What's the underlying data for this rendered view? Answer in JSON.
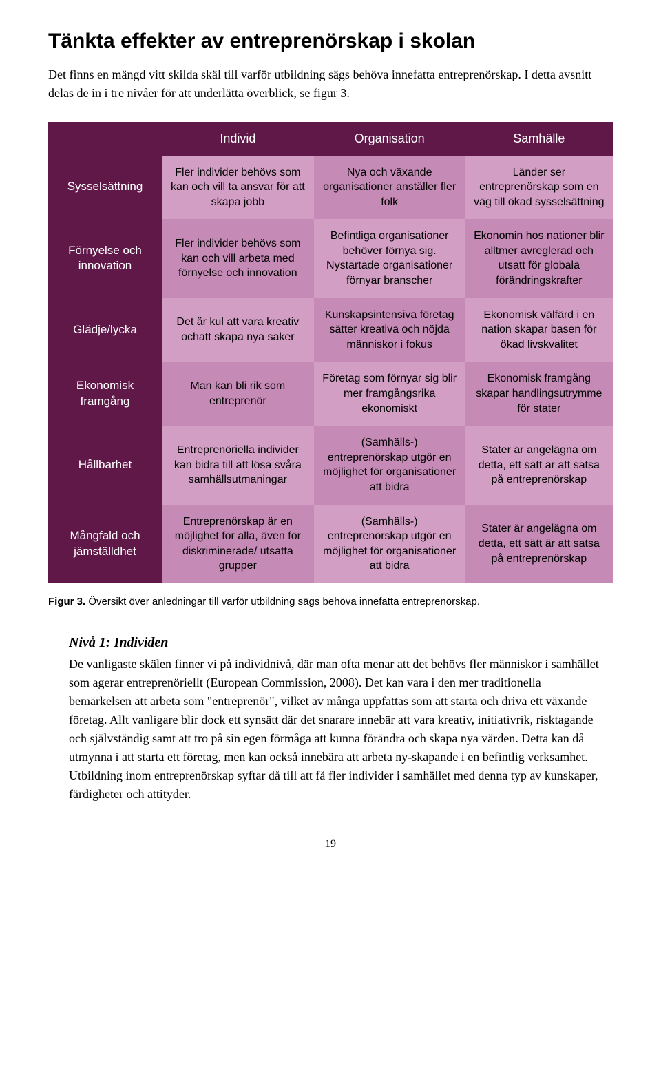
{
  "heading": "Tänkta effekter av entreprenörskap i skolan",
  "intro": "Det finns en mängd vitt skilda skäl till varför utbildning sägs behöva innefatta entreprenörskap. I detta avsnitt delas de in i tre nivåer för att underlätta överblick, se figur 3.",
  "table": {
    "header_bg": "#5f1848",
    "header_color": "#ffffff",
    "shade_a": "#d29ec4",
    "shade_b": "#c58ab6",
    "columns": [
      "Individ",
      "Organisation",
      "Samhälle"
    ],
    "rows": [
      {
        "label": "Sysselsättning",
        "cells": [
          "Fler individer behövs som kan och vill ta ansvar för att skapa jobb",
          "Nya och växande organisationer anställer fler folk",
          "Länder ser entreprenörskap som en väg till ökad sysselsättning"
        ]
      },
      {
        "label": "Förnyelse och innovation",
        "cells": [
          "Fler individer behövs som kan och vill arbeta med förnyelse och innovation",
          "Befintliga organisationer behöver förnya sig. Nystartade organisationer förnyar branscher",
          "Ekonomin hos nationer blir alltmer avreglerad och utsatt för globala förändringskrafter"
        ]
      },
      {
        "label": "Glädje/lycka",
        "cells": [
          "Det är kul att vara kreativ ochatt skapa nya saker",
          "Kunskapsintensiva företag sätter kreativa och nöjda människor i fokus",
          "Ekonomisk välfärd i en nation skapar basen för ökad livskvalitet"
        ]
      },
      {
        "label": "Ekonomisk framgång",
        "cells": [
          "Man kan bli rik som entreprenör",
          "Företag som förnyar sig blir mer framgångsrika ekonomiskt",
          "Ekonomisk framgång skapar handlingsutrymme för stater"
        ]
      },
      {
        "label": "Hållbarhet",
        "cells": [
          "Entreprenöriella individer kan bidra till att lösa svåra samhällsutmaningar",
          "(Samhälls-) entreprenörskap utgör en möjlighet för organisationer att bidra",
          "Stater är angelägna om detta, ett sätt är att satsa på entreprenörskap"
        ]
      },
      {
        "label": "Mångfald och jämställdhet",
        "cells": [
          "Entreprenörskap är en möjlighet för alla, även för diskriminerade/ utsatta grupper",
          "(Samhälls-) entreprenörskap utgör en möjlighet för organisationer att bidra",
          "Stater är angelägna om detta, ett sätt är att satsa på entreprenörskap"
        ]
      }
    ]
  },
  "caption_label": "Figur 3.",
  "caption_text": " Översikt över anledningar till varför utbildning sägs behöva innefatta entreprenörskap.",
  "subhead": "Nivå 1: Individen",
  "body": "De vanligaste skälen finner vi på individnivå, där man ofta menar att det behövs fler människor i samhället som agerar entreprenöriellt (European Commission, 2008). Det kan vara i den mer traditionella bemärkelsen att arbeta som \"entreprenör\", vilket av många uppfattas som att starta och driva ett växande företag. Allt vanligare blir dock ett synsätt där det snarare innebär att vara kreativ, initiativrik, risktagande och självständig samt att tro på sin egen förmåga att kunna förändra och skapa nya värden. Detta kan då utmynna i att starta ett företag, men kan också innebära att arbeta ny-skapande i en befintlig verksamhet. Utbildning inom entreprenörskap syftar då till att få fler individer i samhället med denna typ av kunskaper, färdigheter och attityder.",
  "page_number": "19"
}
